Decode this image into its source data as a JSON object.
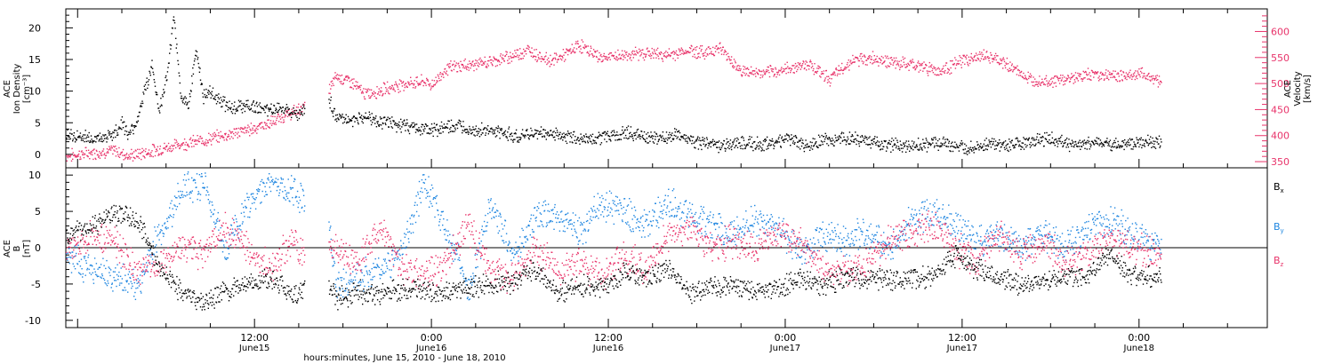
{
  "colors": {
    "black": "#000000",
    "red": "#e8336a",
    "blue": "#1f86e0"
  },
  "x_axis": {
    "title": "hours:minutes, June 15, 2010 - June 18, 2010",
    "tick_labels": [
      {
        "time": "12:00",
        "date": "June15",
        "hours": 12
      },
      {
        "time": "0:00",
        "date": "June16",
        "hours": 24
      },
      {
        "time": "12:00",
        "date": "June16",
        "hours": 36
      },
      {
        "time": "0:00",
        "date": "June17",
        "hours": 48
      },
      {
        "time": "12:00",
        "date": "June17",
        "hours": 60
      },
      {
        "time": "0:00",
        "date": "June18",
        "hours": 72
      }
    ]
  },
  "chart_data": [
    {
      "type": "scatter",
      "panel": "top",
      "ylabel_left": [
        "ACE",
        "Ion Density",
        "[cm⁻³]"
      ],
      "ylabel_right": [
        "ACE",
        "Velocity",
        "[km/s]"
      ],
      "xlim_hours": [
        -0.8,
        80.7
      ],
      "ylim_left": [
        -1,
        23
      ],
      "yticks_left": [
        "0",
        "5",
        "10",
        "15",
        "20"
      ],
      "yticks_left_values": [
        0,
        5,
        10,
        15,
        20
      ],
      "ylim_right": [
        345,
        640
      ],
      "yticks_right": [
        "350",
        "400",
        "450",
        "500",
        "550",
        "600"
      ],
      "yticks_right_values": [
        350,
        400,
        450,
        500,
        550,
        600
      ],
      "series": [
        {
          "axis": "left",
          "color": "#000000",
          "x_hours": [
            -0.8,
            0.5,
            1.5,
            2.5,
            3.0,
            3.5,
            4.0,
            4.5,
            5.0,
            5.5,
            6.0,
            6.5,
            7.0,
            7.5,
            8.0,
            8.5,
            9.0,
            9.5,
            10.0,
            10.5,
            11.0,
            11.5,
            12.0,
            13.0,
            14.0,
            15.0,
            16.0,
            16.8,
            17.5,
            18.5,
            19.5,
            21.0,
            22.5,
            24.0,
            25.5,
            27.0,
            28.5,
            30.0,
            31.5,
            33.0,
            34.5,
            36.0,
            37.5,
            39.0,
            40.5,
            42.0,
            43.5,
            45.0,
            46.5,
            48.0,
            49.5,
            51.0,
            52.5,
            54.0,
            55.5,
            57.0,
            58.5,
            60.0,
            61.5,
            63.0,
            64.5,
            66.0,
            67.5,
            69.0,
            70.5,
            72.0,
            73.0,
            73.5
          ],
          "y": [
            3.0,
            2.8,
            2.5,
            3.5,
            5.0,
            3.0,
            5.5,
            10.0,
            14.0,
            7.0,
            12.0,
            21.5,
            9.0,
            8.0,
            17.0,
            9.0,
            10.0,
            9.0,
            8.0,
            7.5,
            7.5,
            8.0,
            7.5,
            7.0,
            7.5,
            6.5,
            8.0,
            10.0,
            6.0,
            5.5,
            6.0,
            5.0,
            4.5,
            4.0,
            4.5,
            4.0,
            3.5,
            3.0,
            3.5,
            3.0,
            2.5,
            3.0,
            3.5,
            2.5,
            3.0,
            2.0,
            1.5,
            2.0,
            1.5,
            2.5,
            1.5,
            2.5,
            2.5,
            2.0,
            1.5,
            1.5,
            2.0,
            1.0,
            1.5,
            1.5,
            2.0,
            2.5,
            1.5,
            2.0,
            1.5,
            2.0,
            2.0,
            2.0
          ]
        },
        {
          "axis": "right",
          "color": "#e8336a",
          "x_hours": [
            -0.8,
            1.0,
            2.5,
            3.5,
            4.5,
            5.5,
            7.0,
            8.5,
            10.0,
            11.5,
            13.0,
            14.5,
            16.0,
            16.8,
            17.5,
            18.5,
            19.5,
            20.5,
            22.0,
            23.5,
            24.0,
            25.0,
            26.0,
            27.5,
            29.0,
            30.5,
            32.0,
            33.0,
            34.0,
            35.5,
            37.0,
            38.5,
            40.0,
            41.5,
            42.5,
            43.5,
            45.0,
            46.5,
            48.0,
            49.5,
            51.0,
            52.5,
            54.0,
            55.5,
            57.0,
            58.5,
            60.0,
            61.5,
            63.0,
            64.5,
            66.0,
            67.5,
            69.0,
            70.5,
            72.0,
            73.0,
            73.5
          ],
          "y": [
            362,
            368,
            372,
            362,
            368,
            375,
            385,
            392,
            402,
            412,
            425,
            445,
            465,
            475,
            515,
            505,
            480,
            488,
            500,
            505,
            498,
            530,
            535,
            540,
            550,
            565,
            545,
            555,
            575,
            550,
            555,
            560,
            555,
            565,
            560,
            570,
            525,
            520,
            528,
            540,
            510,
            545,
            550,
            540,
            535,
            525,
            545,
            555,
            538,
            510,
            505,
            512,
            520,
            515,
            520,
            512,
            505
          ]
        }
      ]
    },
    {
      "type": "scatter",
      "panel": "bottom",
      "ylabel": [
        "ACE",
        "B",
        "[nT]"
      ],
      "xlim_hours": [
        -0.8,
        80.7
      ],
      "ylim": [
        -11,
        11
      ],
      "yticks": [
        "-10",
        "-5",
        "0",
        "5",
        "10"
      ],
      "yticks_values": [
        -10,
        -5,
        0,
        5,
        10
      ],
      "legend": [
        "Bx",
        "By",
        "Bz"
      ],
      "series": [
        {
          "name": "Bx",
          "color": "#000000",
          "x_hours": [
            -0.8,
            1.0,
            2.5,
            4.0,
            5.5,
            7.0,
            8.5,
            10.0,
            11.5,
            13.0,
            14.5,
            16.0,
            16.8,
            17.5,
            19.0,
            20.5,
            22.0,
            23.5,
            25.0,
            26.5,
            28.0,
            29.5,
            31.0,
            32.5,
            34.0,
            35.5,
            37.0,
            38.5,
            40.0,
            41.5,
            43.0,
            44.5,
            46.0,
            47.5,
            49.0,
            50.5,
            52.0,
            53.5,
            55.0,
            56.5,
            58.0,
            59.5,
            61.0,
            62.5,
            64.0,
            65.5,
            67.0,
            68.5,
            70.0,
            71.5,
            73.0,
            73.5
          ],
          "y": [
            2.0,
            3.0,
            4.5,
            4.0,
            -2.5,
            -6.0,
            -7.5,
            -6.0,
            -5.0,
            -4.0,
            -6.5,
            -5.0,
            -4.5,
            -7.0,
            -6.0,
            -6.5,
            -5.5,
            -6.0,
            -6.0,
            -5.5,
            -5.0,
            -4.5,
            -3.0,
            -6.0,
            -5.0,
            -5.5,
            -3.5,
            -4.0,
            -2.5,
            -6.0,
            -5.5,
            -5.0,
            -6.0,
            -5.5,
            -4.0,
            -5.0,
            -4.0,
            -4.0,
            -4.5,
            -4.0,
            -4.0,
            -1.0,
            -3.0,
            -4.0,
            -5.0,
            -4.5,
            -4.0,
            -3.5,
            -1.0,
            -4.0,
            -4.0,
            -4.0
          ]
        },
        {
          "name": "By",
          "color": "#1f86e0",
          "x_hours": [
            -0.8,
            1.0,
            2.5,
            4.0,
            5.5,
            7.0,
            8.5,
            10.0,
            11.5,
            13.0,
            14.5,
            16.0,
            16.8,
            17.5,
            19.0,
            20.5,
            22.0,
            23.5,
            25.0,
            26.5,
            28.0,
            29.5,
            31.0,
            32.5,
            34.0,
            35.5,
            37.0,
            38.5,
            40.0,
            41.5,
            43.0,
            44.5,
            46.0,
            47.5,
            49.0,
            50.5,
            52.0,
            53.5,
            55.0,
            56.5,
            58.0,
            59.5,
            61.0,
            62.5,
            64.0,
            65.5,
            67.0,
            68.5,
            70.0,
            71.5,
            73.0,
            73.5
          ],
          "y": [
            -1.0,
            -3.0,
            -4.0,
            -5.0,
            2.0,
            8.0,
            9.0,
            0.0,
            6.0,
            9.0,
            8.0,
            6.0,
            7.0,
            -5.0,
            -4.0,
            -3.0,
            0.0,
            9.0,
            3.0,
            -6.0,
            6.0,
            -1.0,
            4.0,
            5.0,
            2.0,
            6.0,
            5.0,
            3.0,
            6.0,
            5.0,
            3.0,
            2.0,
            4.0,
            3.0,
            -1.0,
            2.0,
            1.0,
            2.0,
            0.0,
            4.0,
            5.0,
            3.0,
            1.0,
            2.0,
            0.0,
            2.0,
            0.0,
            3.0,
            4.0,
            2.0,
            0.5,
            0.5
          ]
        },
        {
          "name": "Bz",
          "color": "#e8336a",
          "x_hours": [
            -0.8,
            1.0,
            2.5,
            4.0,
            5.5,
            7.0,
            8.5,
            10.0,
            11.5,
            13.0,
            14.5,
            16.0,
            16.8,
            17.5,
            19.0,
            20.5,
            22.0,
            23.5,
            25.0,
            26.5,
            28.0,
            29.5,
            31.0,
            32.5,
            34.0,
            35.5,
            37.0,
            38.5,
            40.0,
            41.5,
            43.0,
            44.5,
            46.0,
            47.5,
            49.0,
            50.5,
            52.0,
            53.5,
            55.0,
            56.5,
            58.0,
            59.5,
            61.0,
            62.5,
            64.0,
            65.5,
            67.0,
            68.5,
            70.0,
            71.5,
            73.0,
            73.5
          ],
          "y": [
            0.0,
            2.0,
            1.0,
            -3.0,
            -2.0,
            0.0,
            -1.0,
            3.0,
            0.0,
            -3.0,
            1.0,
            -2.0,
            0.0,
            0.0,
            -2.0,
            3.0,
            -3.0,
            -4.0,
            -2.0,
            3.0,
            -3.0,
            -4.0,
            0.0,
            -3.0,
            -2.0,
            -4.0,
            -1.0,
            -3.0,
            2.0,
            3.0,
            0.0,
            1.0,
            0.0,
            2.0,
            1.0,
            -3.0,
            -3.0,
            -2.0,
            1.0,
            2.0,
            3.0,
            0.0,
            -2.0,
            2.0,
            -1.0,
            1.0,
            -2.0,
            -1.0,
            2.0,
            0.0,
            -1.0,
            0.0
          ]
        }
      ]
    }
  ]
}
